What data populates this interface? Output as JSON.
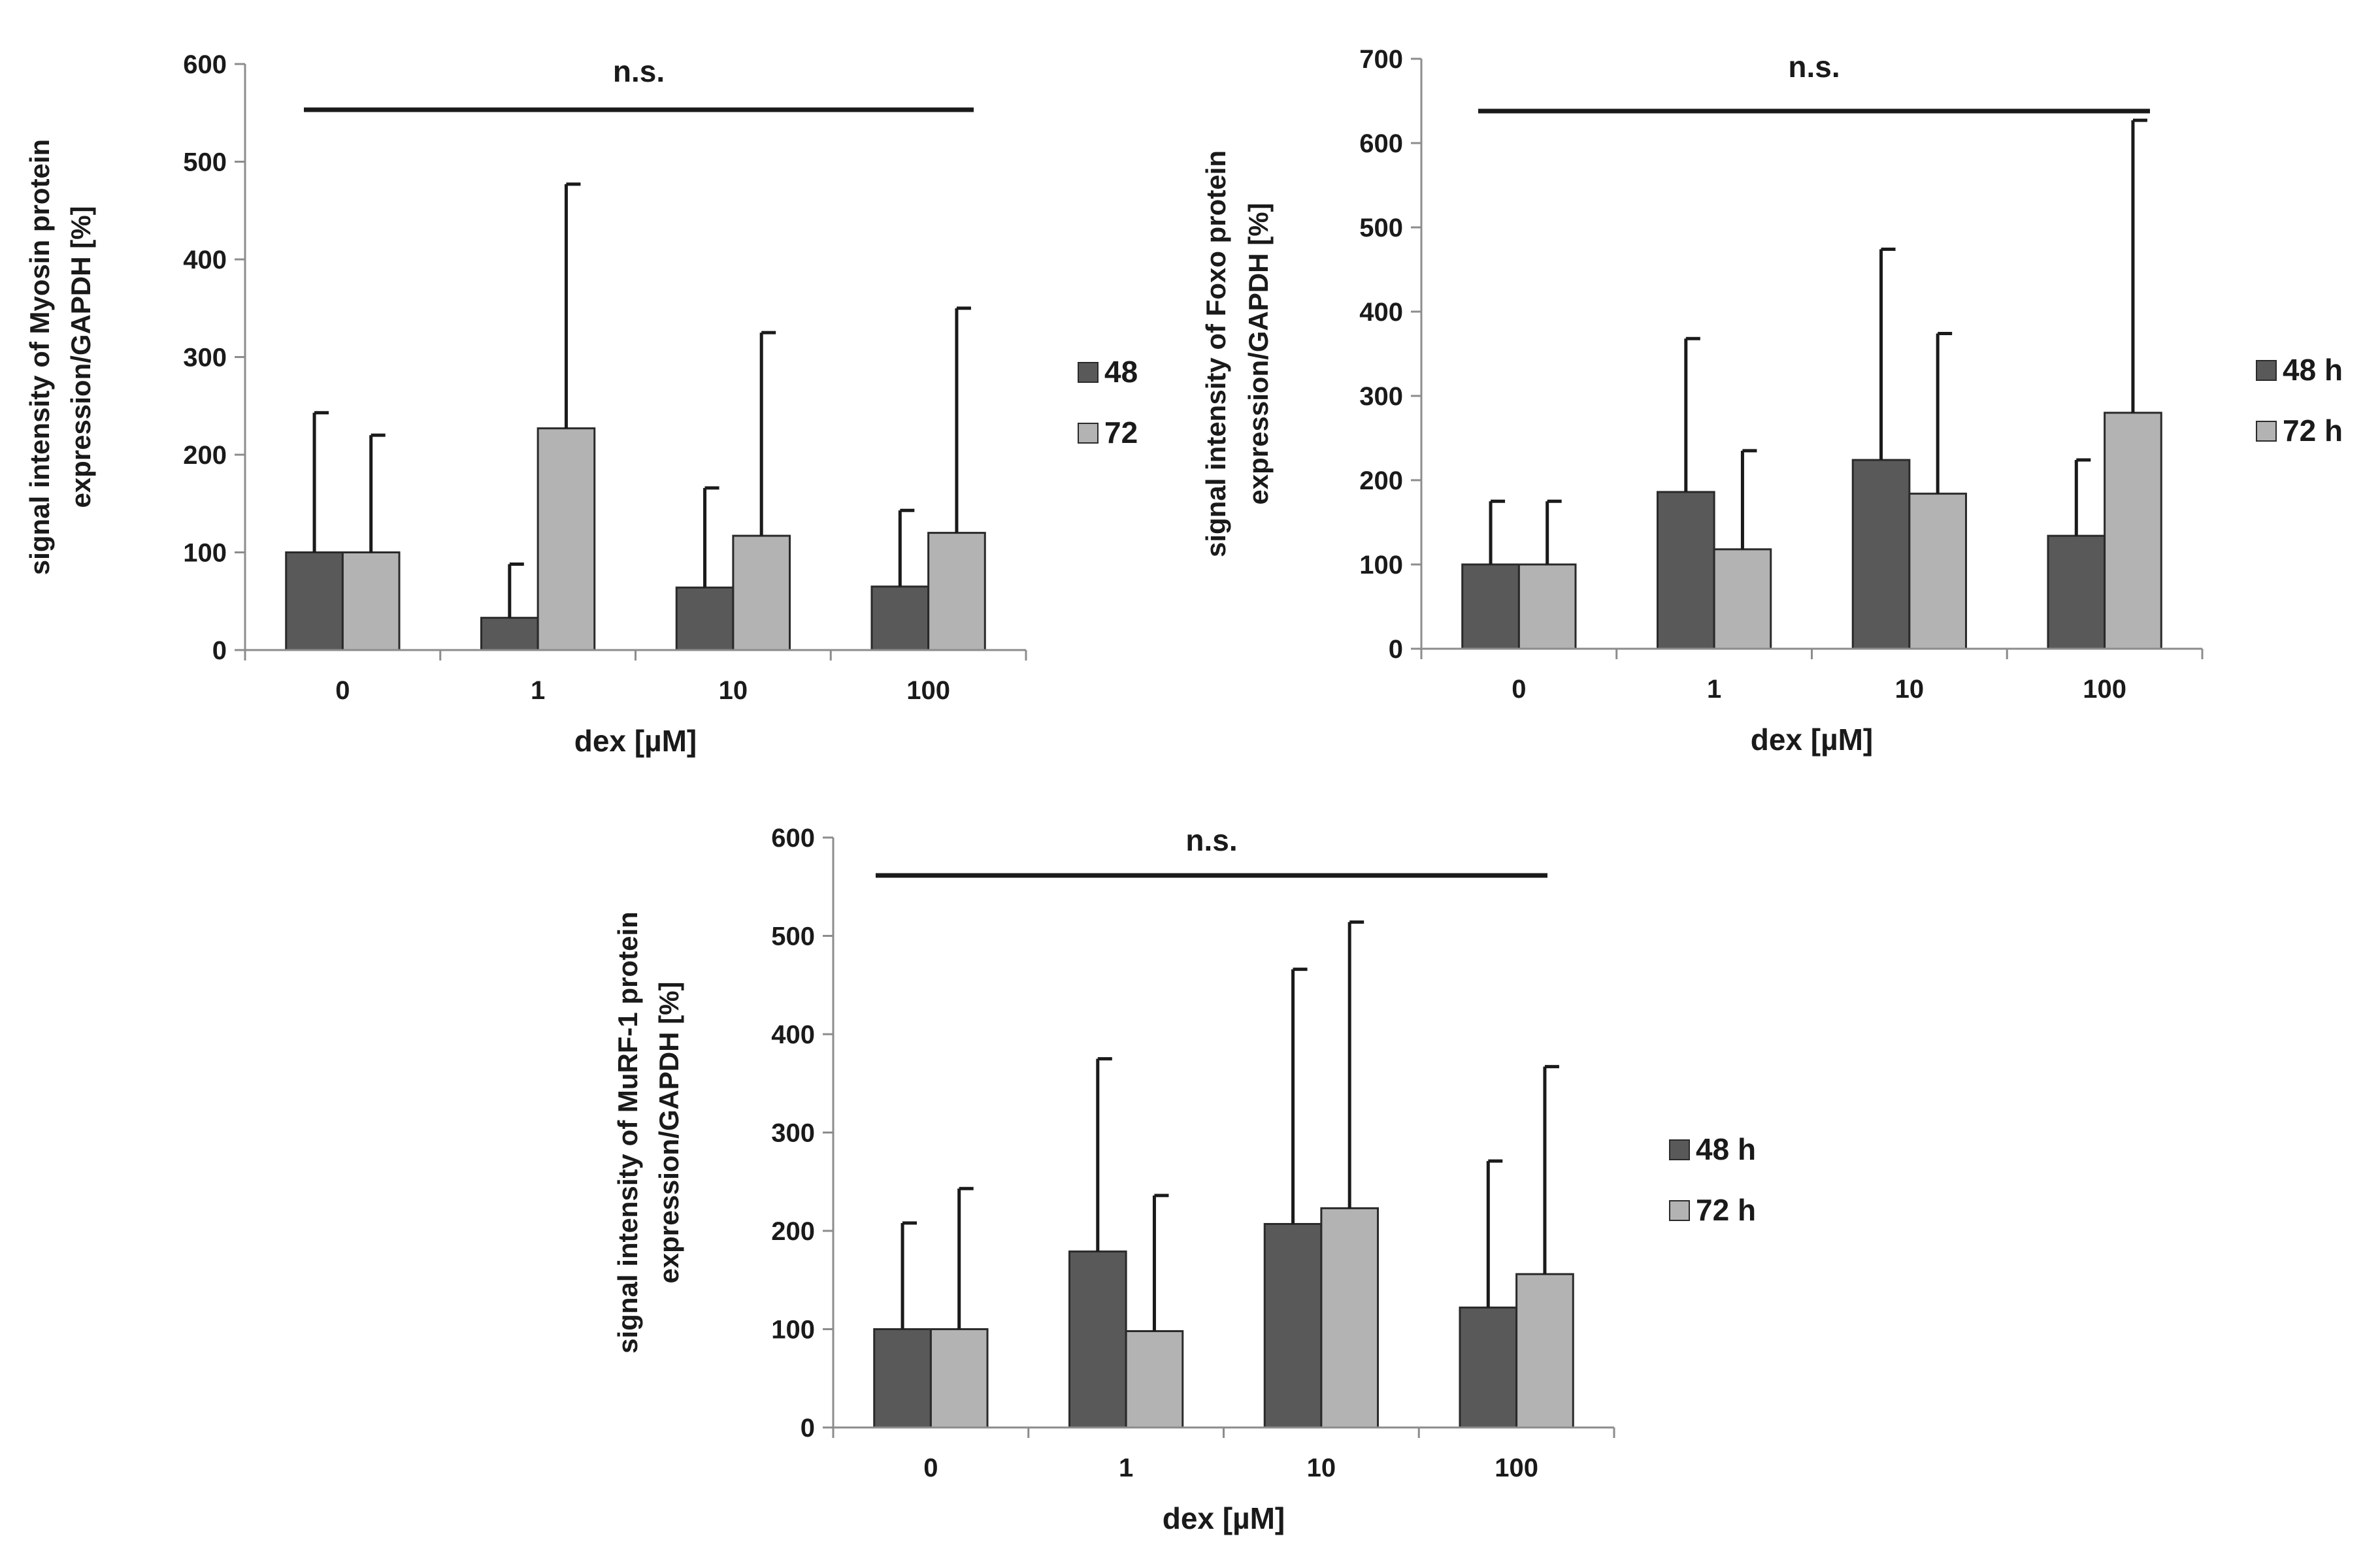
{
  "colors": {
    "series_48": "#595959",
    "series_72": "#b3b3b3",
    "axis": "#8c8c8c",
    "ink": "#1a1a1a"
  },
  "chart_data": [
    {
      "type": "bar",
      "name": "myosin",
      "categories": [
        "0",
        "1",
        "10",
        "100"
      ],
      "series": [
        {
          "name": "48",
          "values": [
            100,
            33,
            64,
            65
          ],
          "errors": [
            143,
            55,
            102,
            78
          ]
        },
        {
          "name": "72",
          "values": [
            100,
            227,
            117,
            120
          ],
          "errors": [
            120,
            250,
            208,
            230
          ]
        }
      ],
      "ylim": [
        0,
        600
      ],
      "yticks": [
        0,
        100,
        200,
        300,
        400,
        500,
        600
      ],
      "xlabel": "dex [µM]",
      "ylabel_line1": "signal intensity of Myosin protein",
      "ylabel_line2": "expression/GAPDH [%]",
      "significance": "n.s.",
      "legend_position": "right"
    },
    {
      "type": "bar",
      "name": "foxo",
      "categories": [
        "0",
        "1",
        "10",
        "100"
      ],
      "series": [
        {
          "name": "48 h",
          "values": [
            100,
            186,
            224,
            134
          ],
          "errors": [
            75,
            182,
            250,
            90
          ]
        },
        {
          "name": "72 h",
          "values": [
            100,
            118,
            184,
            280
          ],
          "errors": [
            75,
            117,
            190,
            347
          ]
        }
      ],
      "ylim": [
        0,
        700
      ],
      "yticks": [
        0,
        100,
        200,
        300,
        400,
        500,
        600,
        700
      ],
      "xlabel": "dex [µM]",
      "ylabel_line1": "signal intensity of Foxo protein",
      "ylabel_line2": "expression/GAPDH [%]",
      "significance": "n.s.",
      "legend_position": "right"
    },
    {
      "type": "bar",
      "name": "murf1",
      "categories": [
        "0",
        "1",
        "10",
        "100"
      ],
      "series": [
        {
          "name": "48 h",
          "values": [
            100,
            179,
            207,
            122
          ],
          "errors": [
            108,
            196,
            259,
            149
          ]
        },
        {
          "name": "72 h",
          "values": [
            100,
            98,
            223,
            156
          ],
          "errors": [
            143,
            138,
            291,
            211
          ]
        }
      ],
      "ylim": [
        0,
        600
      ],
      "yticks": [
        0,
        100,
        200,
        300,
        400,
        500,
        600
      ],
      "xlabel": "dex [µM]",
      "ylabel_line1": "signal intensity of MuRF-1 protein",
      "ylabel_line2": "expression/GAPDH [%]",
      "significance": "n.s.",
      "legend_position": "right"
    }
  ]
}
